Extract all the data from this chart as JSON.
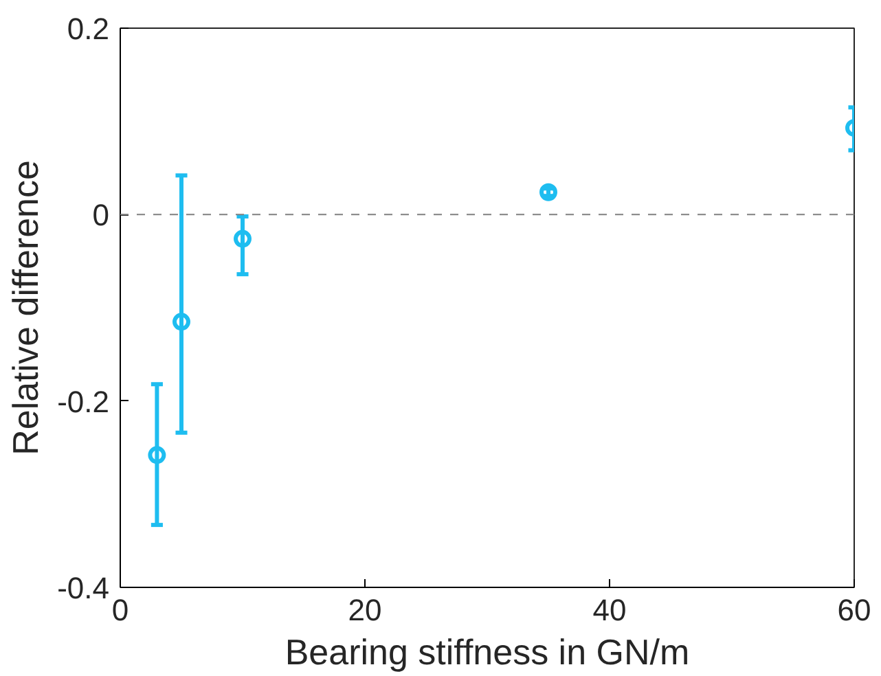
{
  "chart_data": {
    "type": "scatter",
    "xlabel": "Bearing stiffness in GN/m",
    "ylabel": "Relative difference",
    "x": [
      3,
      5,
      10,
      35,
      60
    ],
    "series": [
      {
        "color": "#1ebdf0",
        "values": [
          -0.258,
          -0.115,
          -0.026,
          0.024,
          0.093
        ],
        "errors": [
          [
            -0.333,
            -0.182
          ],
          [
            -0.234,
            0.042
          ],
          [
            -0.064,
            -0.002
          ],
          [
            0.02,
            0.028
          ],
          [
            0.069,
            0.115
          ]
        ]
      }
    ],
    "xlim": [
      0,
      60
    ],
    "ylim": [
      -0.4,
      0.2
    ],
    "xticks": [
      0,
      20,
      40,
      60
    ],
    "yticks": [
      -0.4,
      -0.2,
      {
        "value": 0,
        "label": "0"
      },
      0.2
    ],
    "ref_lines": [
      {
        "axis": "y",
        "value": 0,
        "color": "#808080",
        "line_style": "dashed"
      }
    ],
    "grid": false,
    "marker": "circle"
  }
}
